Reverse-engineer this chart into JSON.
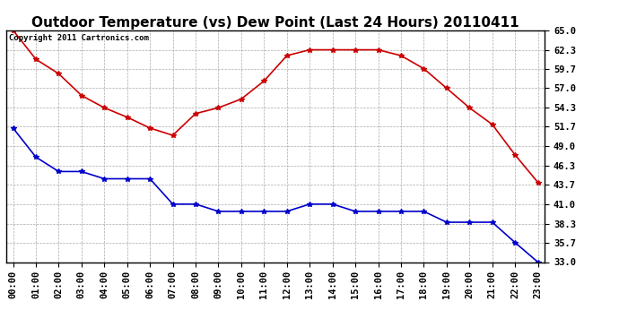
{
  "title": "Outdoor Temperature (vs) Dew Point (Last 24 Hours) 20110411",
  "copyright": "Copyright 2011 Cartronics.com",
  "hours": [
    0,
    1,
    2,
    3,
    4,
    5,
    6,
    7,
    8,
    9,
    10,
    11,
    12,
    13,
    14,
    15,
    16,
    17,
    18,
    19,
    20,
    21,
    22,
    23
  ],
  "temp": [
    65.0,
    61.0,
    59.0,
    56.0,
    54.3,
    53.0,
    51.5,
    50.5,
    53.5,
    54.3,
    55.5,
    58.0,
    61.5,
    62.3,
    62.3,
    62.3,
    62.3,
    61.5,
    59.7,
    57.0,
    54.3,
    52.0,
    47.8,
    44.0
  ],
  "dew": [
    51.5,
    47.5,
    45.5,
    45.5,
    44.5,
    44.5,
    44.5,
    41.0,
    41.0,
    40.0,
    40.0,
    40.0,
    40.0,
    41.0,
    41.0,
    40.0,
    40.0,
    40.0,
    40.0,
    38.5,
    38.5,
    38.5,
    35.7,
    33.0
  ],
  "temp_color": "#cc0000",
  "dew_color": "#0000cc",
  "bg_color": "#ffffff",
  "grid_color": "#aaaaaa",
  "ylim_min": 33.0,
  "ylim_max": 65.0,
  "yticks": [
    33.0,
    35.7,
    38.3,
    41.0,
    43.7,
    46.3,
    49.0,
    51.7,
    54.3,
    57.0,
    59.7,
    62.3,
    65.0
  ],
  "title_fontsize": 11,
  "copyright_fontsize": 6.5,
  "tick_fontsize": 7.5,
  "line_width": 1.2,
  "marker_size": 4
}
